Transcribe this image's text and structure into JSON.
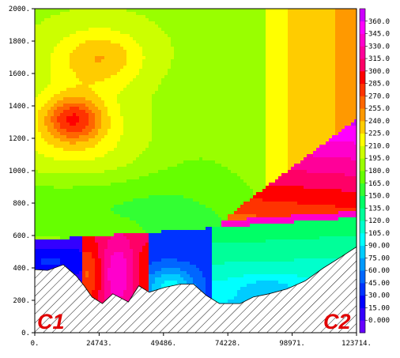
{
  "chart_data": {
    "type": "heatmap",
    "title": "",
    "xlabel": "",
    "ylabel": "",
    "xlim": [
      0,
      123714
    ],
    "ylim": [
      0,
      2000
    ],
    "x_ticks": [
      0,
      24743,
      49486,
      74228,
      98971,
      123714
    ],
    "x_tick_labels": [
      "0.",
      "24743.",
      "49486.",
      "74228.",
      "98971.",
      "123714."
    ],
    "y_ticks": [
      0,
      200,
      400,
      600,
      800,
      1000,
      1200,
      1400,
      1600,
      1800,
      2000
    ],
    "y_tick_labels": [
      "0.",
      "200.",
      "400.",
      "600.",
      "800.",
      "1000.",
      "1200.",
      "1400.",
      "1600.",
      "1800.",
      "2000."
    ],
    "colorbar": {
      "levels": [
        0,
        15,
        30,
        45,
        60,
        75,
        90,
        105,
        120,
        135,
        150,
        165,
        180,
        195,
        210,
        225,
        240,
        255,
        270,
        285,
        300,
        315,
        330,
        345,
        360
      ],
      "labels": [
        "0.000",
        "15.00",
        "30.00",
        "45.00",
        "60.00",
        "75.00",
        "90.00",
        "105.0",
        "120.0",
        "135.0",
        "150.0",
        "165.0",
        "180.0",
        "195.0",
        "210.0",
        "225.0",
        "240.0",
        "255.0",
        "270.0",
        "285.0",
        "300.0",
        "315.0",
        "330.0",
        "345.0",
        "360.0"
      ],
      "colors": [
        "#6600ff",
        "#3300ff",
        "#0000ff",
        "#0033ff",
        "#0066ff",
        "#0099ff",
        "#00ccff",
        "#00ffff",
        "#00ffcc",
        "#00ff99",
        "#00ff66",
        "#33ff33",
        "#66ff00",
        "#99ff00",
        "#ccff00",
        "#ffff00",
        "#ffcc00",
        "#ff9900",
        "#ff6600",
        "#ff3300",
        "#ff0000",
        "#ff0066",
        "#ff0099",
        "#ff00cc",
        "#ff00ff",
        "#cc00ff"
      ]
    },
    "corner_labels": {
      "left": "C1",
      "right": "C2"
    },
    "terrain_profile": [
      [
        0,
        390
      ],
      [
        5000,
        385
      ],
      [
        11000,
        420
      ],
      [
        16000,
        350
      ],
      [
        19000,
        290
      ],
      [
        22000,
        220
      ],
      [
        26000,
        180
      ],
      [
        30000,
        240
      ],
      [
        36000,
        190
      ],
      [
        40000,
        290
      ],
      [
        44000,
        250
      ],
      [
        50000,
        280
      ],
      [
        56000,
        300
      ],
      [
        61000,
        300
      ],
      [
        66000,
        230
      ],
      [
        71000,
        180
      ],
      [
        79000,
        180
      ],
      [
        84000,
        220
      ],
      [
        90000,
        240
      ],
      [
        97000,
        270
      ],
      [
        104000,
        320
      ],
      [
        111000,
        400
      ],
      [
        117000,
        460
      ],
      [
        123714,
        530
      ]
    ]
  }
}
